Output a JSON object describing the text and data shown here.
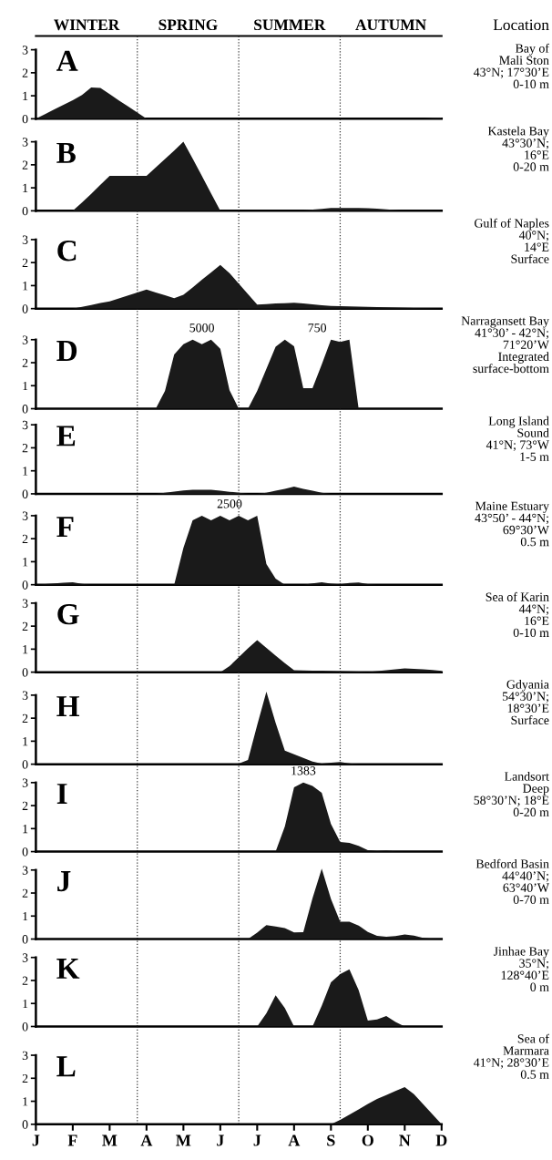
{
  "chart_data": [
    {
      "type": "other",
      "annotations": [
        "WINTER",
        "SPRING",
        "SUMMER",
        "AUTUMN",
        "Location"
      ]
    },
    {
      "type": "area",
      "title": "A",
      "grid": "x",
      "color": "#1a1a1a",
      "categories": [
        null,
        null,
        null,
        null,
        null,
        null,
        null,
        null,
        null,
        null,
        null,
        null,
        null,
        null,
        null,
        null,
        null,
        null,
        null,
        null,
        null,
        null,
        null,
        null,
        null,
        null,
        null,
        null,
        null,
        null,
        null,
        null,
        null,
        null,
        null,
        null,
        null,
        null,
        null,
        null,
        null,
        null,
        null,
        null,
        null
      ],
      "values": [
        0,
        0.2,
        0.41,
        0.61,
        0.81,
        1.03,
        1.36,
        1.34,
        1.07,
        0.8,
        0.54,
        0.27,
        0,
        0,
        0,
        0,
        0,
        0,
        0,
        0,
        0,
        0,
        0,
        0,
        0,
        0,
        0,
        0,
        0,
        0,
        0,
        0,
        0,
        0,
        0,
        0,
        0,
        0,
        0,
        0,
        0,
        0,
        0,
        0.04,
        0.05
      ],
      "ylim": [
        0,
        3.6
      ],
      "yticks": [
        0,
        1,
        2,
        3
      ],
      "annotations": [
        "Bay of\nMali Ston\n43°N; 17°30’E\n0-10 m"
      ]
    },
    {
      "type": "area",
      "title": "B",
      "grid": "x",
      "color": "#1a1a1a",
      "categories": [
        null,
        null,
        null,
        null,
        null,
        null,
        null,
        null,
        null,
        null,
        null,
        null,
        null,
        null,
        null,
        null,
        null,
        null,
        null,
        null,
        null,
        null,
        null,
        null,
        null,
        null,
        null,
        null,
        null,
        null,
        null,
        null,
        null,
        null,
        null,
        null,
        null,
        null,
        null,
        null,
        null,
        null,
        null,
        null,
        null
      ],
      "values": [
        0,
        0,
        0,
        0,
        0,
        0.36,
        0.74,
        1.13,
        1.52,
        1.52,
        1.52,
        1.52,
        1.52,
        1.89,
        2.25,
        2.62,
        3.0,
        2.27,
        1.52,
        0.76,
        0,
        0,
        0,
        0,
        0,
        0,
        0,
        0,
        0,
        0.01,
        0.05,
        0.08,
        0.12,
        0.12,
        0.12,
        0.12,
        0.11,
        0.09,
        0.06,
        0.03,
        0,
        0,
        0,
        0,
        0
      ],
      "ylim": [
        0,
        4.0
      ],
      "yticks": [
        0,
        1,
        2,
        3
      ],
      "annotations": [
        "Kastela Bay\n43°30’N;\n16°E\n0-20 m"
      ]
    },
    {
      "type": "area",
      "title": "C",
      "grid": "x",
      "color": "#1a1a1a",
      "categories": [
        null,
        null,
        null,
        null,
        null,
        null,
        null,
        null,
        null,
        null,
        null,
        null,
        null,
        null,
        null,
        null,
        null,
        null,
        null,
        null,
        null,
        null,
        null,
        null,
        null,
        null,
        null,
        null,
        null,
        null,
        null,
        null,
        null,
        null,
        null,
        null,
        null,
        null,
        null,
        null,
        null,
        null,
        null,
        null,
        null
      ],
      "values": [
        0,
        0,
        0,
        0,
        0,
        0.08,
        0.16,
        0.24,
        0.31,
        0.44,
        0.57,
        0.7,
        0.83,
        0.7,
        0.58,
        0.45,
        0.6,
        0.92,
        1.25,
        1.57,
        1.9,
        1.54,
        1.09,
        0.63,
        0.18,
        0.2,
        0.22,
        0.23,
        0.25,
        0.22,
        0.19,
        0.15,
        0.12,
        0.11,
        0.1,
        0.09,
        0.08,
        0.07,
        0.06,
        0.05,
        0.04,
        0.03,
        0.02,
        0.01,
        0
      ],
      "ylim": [
        0,
        4.25
      ],
      "yticks": [
        0,
        1,
        2,
        3
      ],
      "annotations": [
        "Gulf of Naples\n40°N;\n14°E\nSurface"
      ]
    },
    {
      "type": "area",
      "title": "D",
      "grid": "x",
      "color": "#1a1a1a",
      "categories": [
        null,
        null,
        null,
        null,
        null,
        null,
        null,
        null,
        null,
        null,
        null,
        null,
        null,
        null,
        null,
        null,
        null,
        null,
        null,
        null,
        null,
        null,
        null,
        null,
        null,
        null,
        null,
        null,
        null,
        null,
        null,
        null,
        null,
        null,
        null,
        null,
        null,
        null,
        null,
        null,
        null,
        null,
        null,
        null,
        null
      ],
      "values": [
        0,
        0,
        0,
        0,
        0,
        0,
        0,
        0,
        0,
        0,
        0,
        0,
        0,
        0,
        0.77,
        2.36,
        2.8,
        3,
        2.8,
        3,
        2.6,
        0.8,
        0,
        0,
        0.77,
        1.73,
        2.69,
        3,
        2.71,
        0.89,
        0.89,
        1.92,
        3,
        2.9,
        3,
        0,
        0,
        0,
        0,
        0,
        0,
        0,
        0,
        0,
        0
      ],
      "ylim": [
        0,
        4.35
      ],
      "yticks": [
        0,
        1,
        2,
        3
      ],
      "annotations": [
        "Narragansett Bay\n41°30’ - 42°N;\n71°20’W\nIntegrated\nsurface-bottom",
        "5000",
        "750"
      ]
    },
    {
      "type": "area",
      "title": "E",
      "grid": "x",
      "color": "#1a1a1a",
      "categories": [
        null,
        null,
        null,
        null,
        null,
        null,
        null,
        null,
        null,
        null,
        null,
        null,
        null,
        null,
        null,
        null,
        null,
        null,
        null,
        null,
        null,
        null,
        null,
        null,
        null,
        null,
        null,
        null,
        null,
        null,
        null,
        null,
        null,
        null,
        null,
        null,
        null,
        null,
        null,
        null,
        null,
        null,
        null,
        null,
        null
      ],
      "values": [
        0,
        0,
        0,
        0,
        0,
        0,
        0,
        0,
        0,
        0,
        0,
        0,
        0,
        0,
        0.05,
        0.1,
        0.15,
        0.18,
        0.18,
        0.18,
        0.14,
        0.09,
        0.05,
        0,
        0,
        0.05,
        0.14,
        0.22,
        0.31,
        0.22,
        0.14,
        0.05,
        0,
        0,
        0,
        0,
        0,
        0,
        0,
        0,
        0,
        0,
        0,
        0,
        0
      ],
      "ylim": [
        0,
        3.7
      ],
      "yticks": [
        0,
        1,
        2,
        3
      ],
      "annotations": [
        "Long Island\nSound\n41°N; 73°W\n1-5 m"
      ]
    },
    {
      "type": "area",
      "title": "F",
      "grid": "x",
      "color": "#1a1a1a",
      "categories": [
        null,
        null,
        null,
        null,
        null,
        null,
        null,
        null,
        null,
        null,
        null,
        null,
        null,
        null,
        null,
        null,
        null,
        null,
        null,
        null,
        null,
        null,
        null,
        null,
        null,
        null,
        null,
        null,
        null,
        null,
        null,
        null,
        null,
        null,
        null,
        null,
        null,
        null,
        null,
        null,
        null,
        null,
        null,
        null,
        null
      ],
      "values": [
        0,
        0.03,
        0.06,
        0.09,
        0.11,
        0.04,
        0,
        0,
        0,
        0,
        0,
        0,
        0,
        0,
        0,
        0,
        1.6,
        2.8,
        3,
        2.8,
        3,
        2.8,
        3,
        2.8,
        3,
        0.9,
        0.26,
        0,
        0,
        0,
        0.06,
        0.11,
        0.05,
        0.02,
        0.08,
        0.1,
        0.03,
        0,
        0,
        0,
        0,
        0,
        0,
        0,
        0
      ],
      "ylim": [
        0,
        3.95
      ],
      "yticks": [
        0,
        1,
        2,
        3
      ],
      "annotations": [
        "Maine Estuary\n43°50’ - 44°N;\n69°30’W\n0.5 m",
        "2500"
      ]
    },
    {
      "type": "area",
      "title": "G",
      "grid": "x",
      "color": "#1a1a1a",
      "categories": [
        null,
        null,
        null,
        null,
        null,
        null,
        null,
        null,
        null,
        null,
        null,
        null,
        null,
        null,
        null,
        null,
        null,
        null,
        null,
        null,
        null,
        null,
        null,
        null,
        null,
        null,
        null,
        null,
        null,
        null,
        null,
        null,
        null,
        null,
        null,
        null,
        null,
        null,
        null,
        null,
        null,
        null,
        null,
        null,
        null
      ],
      "values": [
        0,
        0,
        0,
        0,
        0,
        0,
        0,
        0,
        0,
        0,
        0,
        0,
        0,
        0,
        0,
        0,
        0,
        0,
        0,
        0,
        0,
        0.26,
        0.65,
        1.03,
        1.39,
        1.05,
        0.72,
        0.39,
        0.08,
        0.07,
        0.06,
        0.06,
        0.05,
        0.04,
        0.03,
        0.02,
        0.01,
        0.04,
        0.08,
        0.12,
        0.16,
        0.14,
        0.12,
        0.09,
        0.05
      ],
      "ylim": [
        0,
        3.8
      ],
      "yticks": [
        0,
        1,
        2,
        3
      ],
      "annotations": [
        "Sea of Karin\n44°N;\n16°E\n0-10 m"
      ]
    },
    {
      "type": "area",
      "title": "H",
      "grid": "x",
      "color": "#1a1a1a",
      "categories": [
        null,
        null,
        null,
        null,
        null,
        null,
        null,
        null,
        null,
        null,
        null,
        null,
        null,
        null,
        null,
        null,
        null,
        null,
        null,
        null,
        null,
        null,
        null,
        null,
        null,
        null,
        null,
        null,
        null,
        null,
        null,
        null,
        null,
        null,
        null,
        null,
        null,
        null,
        null,
        null,
        null,
        null,
        null,
        null,
        null
      ],
      "values": [
        0,
        0,
        0,
        0,
        0,
        0,
        0,
        0,
        0,
        0,
        0,
        0,
        0,
        0,
        0,
        0,
        0,
        0,
        0,
        0,
        0,
        0,
        0.02,
        0.18,
        1.7,
        3.15,
        1.8,
        0.59,
        0.43,
        0.27,
        0.11,
        0.02,
        0.06,
        0.09,
        0.03,
        0,
        0,
        0,
        0,
        0,
        0,
        0,
        0,
        0,
        0
      ],
      "ylim": [
        0,
        4.0
      ],
      "yticks": [
        0,
        1,
        2,
        3
      ],
      "annotations": [
        "Gdyania\n54°30’N;\n18°30’E\nSurface"
      ]
    },
    {
      "type": "area",
      "title": "I",
      "grid": "x",
      "color": "#1a1a1a",
      "categories": [
        null,
        null,
        null,
        null,
        null,
        null,
        null,
        null,
        null,
        null,
        null,
        null,
        null,
        null,
        null,
        null,
        null,
        null,
        null,
        null,
        null,
        null,
        null,
        null,
        null,
        null,
        null,
        null,
        null,
        null,
        null,
        null,
        null,
        null,
        null,
        null,
        null,
        null,
        null,
        null,
        null,
        null,
        null,
        null,
        null
      ],
      "values": [
        0,
        0,
        0,
        0,
        0,
        0,
        0,
        0,
        0,
        0,
        0,
        0,
        0,
        0,
        0,
        0,
        0,
        0,
        0,
        0,
        0,
        0,
        0,
        0,
        0,
        0,
        0,
        1.09,
        2.8,
        3,
        2.85,
        2.56,
        1.2,
        0.42,
        0.38,
        0.25,
        0.06,
        0.02,
        0.04,
        0.01,
        0,
        0,
        0,
        0,
        0
      ],
      "ylim": [
        0,
        3.8
      ],
      "yticks": [
        0,
        1,
        2,
        3
      ],
      "annotations": [
        "Landsort\nDeep\n58°30’N; 18°E\n0-20 m",
        "1383"
      ]
    },
    {
      "type": "area",
      "title": "J",
      "grid": "x",
      "color": "#1a1a1a",
      "categories": [
        null,
        null,
        null,
        null,
        null,
        null,
        null,
        null,
        null,
        null,
        null,
        null,
        null,
        null,
        null,
        null,
        null,
        null,
        null,
        null,
        null,
        null,
        null,
        null,
        null,
        null,
        null,
        null,
        null,
        null,
        null,
        null,
        null,
        null,
        null,
        null,
        null,
        null,
        null,
        null,
        null,
        null,
        null,
        null,
        null
      ],
      "values": [
        0,
        0,
        0,
        0,
        0,
        0,
        0,
        0,
        0,
        0,
        0,
        0,
        0,
        0,
        0,
        0,
        0,
        0,
        0,
        0,
        0,
        0,
        0,
        0,
        0.28,
        0.61,
        0.55,
        0.48,
        0.29,
        0.3,
        1.77,
        3.06,
        1.74,
        0.75,
        0.75,
        0.59,
        0.31,
        0.14,
        0.1,
        0.13,
        0.2,
        0.15,
        0.05,
        0.01,
        0
      ],
      "ylim": [
        0,
        3.8
      ],
      "yticks": [
        0,
        1,
        2,
        3
      ],
      "annotations": [
        "Bedford Basin\n44°40’N;\n63°40’W\n0-70 m"
      ]
    },
    {
      "type": "area",
      "title": "K",
      "grid": "x",
      "color": "#1a1a1a",
      "categories": [
        null,
        null,
        null,
        null,
        null,
        null,
        null,
        null,
        null,
        null,
        null,
        null,
        null,
        null,
        null,
        null,
        null,
        null,
        null,
        null,
        null,
        null,
        null,
        null,
        null,
        null,
        null,
        null,
        null,
        null,
        null,
        null,
        null,
        null,
        null,
        null,
        null,
        null,
        null,
        null,
        null,
        null,
        null,
        null,
        null
      ],
      "values": [
        0,
        0,
        0,
        0,
        0,
        0,
        0,
        0,
        0,
        0,
        0,
        0,
        0,
        0,
        0,
        0,
        0,
        0,
        0,
        0,
        0,
        0,
        0,
        0,
        0,
        0.57,
        1.36,
        0.8,
        0,
        0,
        0,
        0.9,
        1.92,
        2.28,
        2.48,
        1.58,
        0.26,
        0.31,
        0.45,
        0.2,
        0,
        0,
        0,
        0,
        0
      ],
      "ylim": [
        0,
        3.8
      ],
      "yticks": [
        0,
        1,
        2,
        3
      ],
      "annotations": [
        "Jinhae Bay\n35°N;\n128°40’E\n0 m"
      ]
    },
    {
      "type": "area",
      "title": "L",
      "grid": "x",
      "color": "#1a1a1a",
      "categories": [
        "J",
        null,
        null,
        null,
        "F",
        null,
        null,
        null,
        "M",
        null,
        null,
        null,
        "A",
        null,
        null,
        null,
        "M",
        null,
        null,
        null,
        "J",
        null,
        null,
        null,
        "J",
        null,
        null,
        null,
        "A",
        null,
        null,
        null,
        "S",
        null,
        null,
        null,
        "O",
        null,
        null,
        null,
        "N",
        null,
        null,
        null,
        "D"
      ],
      "values": [
        0,
        0,
        0,
        0,
        0,
        0,
        0,
        0,
        0,
        0,
        0,
        0,
        0,
        0,
        0,
        0,
        0,
        0,
        0,
        0,
        0,
        0,
        0,
        0,
        0,
        0,
        0,
        0,
        0,
        0,
        0,
        0,
        0,
        0.19,
        0.42,
        0.65,
        0.88,
        1.1,
        1.27,
        1.45,
        1.62,
        1.31,
        0.87,
        0.44,
        0
      ],
      "ylim": [
        0,
        4.25
      ],
      "yticks": [
        0,
        1,
        2,
        3
      ],
      "annotations": [
        "Sea of\nMarmara\n41°N; 28°30’E\n0.5 m"
      ]
    }
  ]
}
